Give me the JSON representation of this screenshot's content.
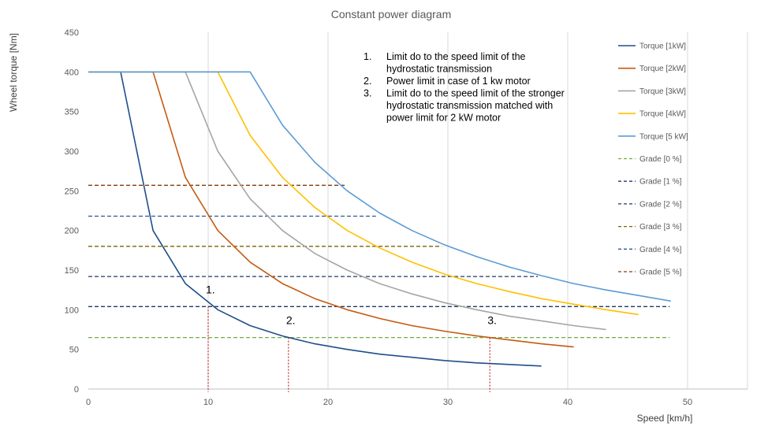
{
  "chart_data": {
    "type": "line",
    "title": "Constant power diagram",
    "xlabel": "Speed [km/h]",
    "ylabel": "Wheel torque [Nm]",
    "xlim": [
      0,
      55
    ],
    "ylim": [
      0,
      450
    ],
    "xticks": [
      0,
      10,
      20,
      30,
      40,
      50
    ],
    "yticks": [
      0,
      50,
      100,
      150,
      200,
      250,
      300,
      350,
      400,
      450
    ],
    "grid": "vertical",
    "legend_position": "right",
    "series": [
      {
        "name": "Torque [1kW]",
        "color": "#1f4e8c",
        "style": "solid",
        "x": [
          0,
          2.7,
          5.4,
          8.1,
          10.8,
          13.5,
          16.2,
          18.9,
          21.6,
          24.3,
          27,
          29.7,
          32.4,
          35.1,
          37.8
        ],
        "y": [
          400,
          400,
          200,
          133,
          100,
          80,
          67,
          57,
          50,
          44,
          40,
          36,
          33,
          31,
          29
        ]
      },
      {
        "name": "Torque [2kW]",
        "color": "#c55a11",
        "style": "solid",
        "x": [
          0,
          5.4,
          8.1,
          10.8,
          13.5,
          16.2,
          18.9,
          21.6,
          24.3,
          27,
          29.7,
          32.4,
          35.1,
          37.8,
          40.5
        ],
        "y": [
          400,
          400,
          267,
          200,
          160,
          133,
          114,
          100,
          89,
          80,
          73,
          67,
          62,
          57,
          53
        ]
      },
      {
        "name": "Torque [3kW]",
        "color": "#a5a5a5",
        "style": "solid",
        "x": [
          0,
          8.1,
          10.8,
          13.5,
          16.2,
          18.9,
          21.6,
          24.3,
          27,
          29.7,
          32.4,
          35.1,
          37.8,
          40.5,
          43.2
        ],
        "y": [
          400,
          400,
          300,
          240,
          200,
          171,
          150,
          133,
          120,
          109,
          100,
          92,
          86,
          80,
          75
        ]
      },
      {
        "name": "Torque [4kW]",
        "color": "#ffc000",
        "style": "solid",
        "x": [
          0,
          10.8,
          13.5,
          16.2,
          18.9,
          21.6,
          24.3,
          27,
          29.7,
          32.4,
          35.1,
          37.8,
          40.5,
          43.2,
          45.9
        ],
        "y": [
          400,
          400,
          320,
          267,
          229,
          200,
          178,
          160,
          145,
          133,
          123,
          114,
          107,
          100,
          94
        ]
      },
      {
        "name": "Torque [5 kW]",
        "color": "#5b9bd5",
        "style": "solid",
        "x": [
          0,
          13.5,
          16.2,
          18.9,
          21.6,
          24.3,
          27,
          29.7,
          32.4,
          35.1,
          37.8,
          40.5,
          43.2,
          45.9,
          48.6
        ],
        "y": [
          400,
          400,
          333,
          286,
          250,
          222,
          200,
          182,
          167,
          154,
          143,
          133,
          125,
          118,
          111
        ]
      },
      {
        "name": "Grade [0 %]",
        "color": "#70ad47",
        "style": "dashed",
        "x": [
          0,
          48.5
        ],
        "y": [
          65,
          65
        ]
      },
      {
        "name": "Grade [1 %]",
        "color": "#203864",
        "style": "dashed",
        "x": [
          0,
          48.5
        ],
        "y": [
          104,
          104
        ]
      },
      {
        "name": "Grade [2 %]",
        "color": "#203864",
        "style": "dashed",
        "x": [
          0,
          37.5
        ],
        "y": [
          142,
          142
        ]
      },
      {
        "name": "Grade [3 %]",
        "color": "#7f6000",
        "style": "dashed",
        "x": [
          0,
          29.5
        ],
        "y": [
          180,
          180
        ]
      },
      {
        "name": "Grade [4 %]",
        "color": "#2e5597",
        "style": "dashed",
        "x": [
          0,
          24
        ],
        "y": [
          218,
          218
        ]
      },
      {
        "name": "Grade [5 %]",
        "color": "#843c0c",
        "style": "dashed",
        "x": [
          0,
          21.5
        ],
        "y": [
          257,
          257
        ]
      }
    ],
    "markers": [
      {
        "label": "1.",
        "x": 10,
        "y": 104,
        "color": "#c00000"
      },
      {
        "label": "2.",
        "x": 16.7,
        "y": 65,
        "color": "#c00000"
      },
      {
        "label": "3.",
        "x": 33.5,
        "y": 65,
        "color": "#c00000"
      }
    ],
    "annotation_lines": [
      {
        "number": "1.",
        "lines": [
          "Limit do to the speed limit of the",
          "hydrostatic transmission"
        ]
      },
      {
        "number": "2.",
        "lines": [
          "Power limit in case of 1 kw motor"
        ]
      },
      {
        "number": "3.",
        "lines": [
          "Limit do to the speed limit of the stronger",
          "hydrostatic transmission matched with",
          "power limit for 2 kW motor"
        ]
      }
    ]
  }
}
